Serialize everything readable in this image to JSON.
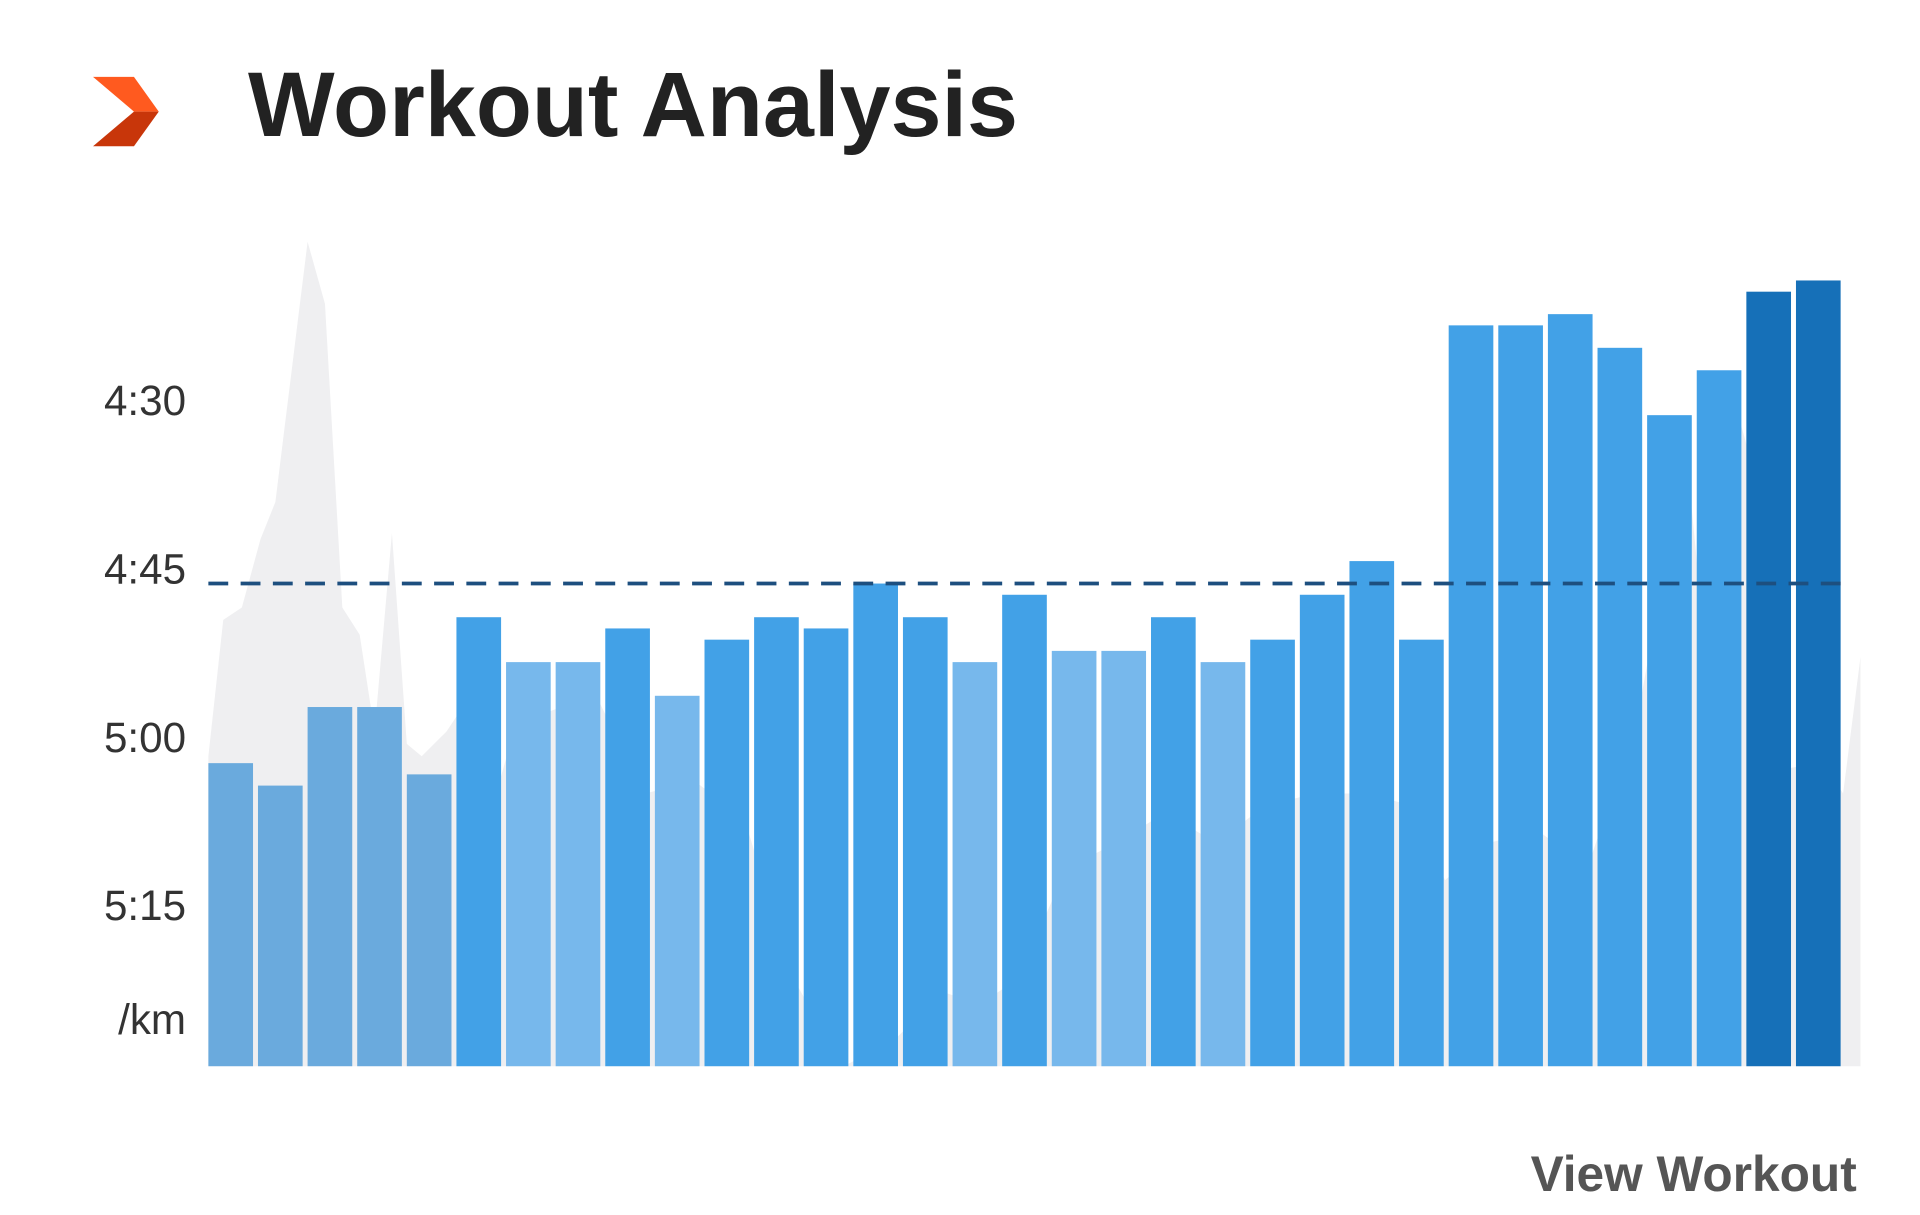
{
  "chart_data": {
    "type": "bar",
    "title": "Workout Analysis",
    "link": "View Workout",
    "y_unit": "/km",
    "categories": [
      null,
      null,
      null,
      null,
      null,
      null,
      null,
      null,
      null,
      null,
      null,
      null,
      null,
      null,
      null,
      null,
      null,
      null,
      null,
      null,
      null,
      null,
      null,
      null,
      null,
      null,
      null,
      null,
      null,
      null,
      null,
      null,
      null
    ],
    "values": [
      302,
      304,
      297,
      297,
      303,
      289,
      293,
      293,
      290,
      296,
      291,
      289,
      290,
      286,
      289,
      293,
      287,
      292,
      292,
      289,
      293,
      291,
      287,
      284,
      291,
      263,
      263,
      262,
      265,
      271,
      267,
      260,
      259
    ],
    "colors": [
      "#6aaadd",
      "#6aaadd",
      "#6aaadd",
      "#6aaadd",
      "#6aaadd",
      "#42a1e7",
      "#77b8ec",
      "#77b8ec",
      "#42a1e7",
      "#77b8ec",
      "#42a1e7",
      "#42a1e7",
      "#42a1e7",
      "#42a1e7",
      "#42a1e7",
      "#77b8ec",
      "#42a1e7",
      "#77b8ec",
      "#77b8ec",
      "#42a1e7",
      "#77b8ec",
      "#42a1e7",
      "#42a1e7",
      "#42a1e7",
      "#42a1e7",
      "#42a1e7",
      "#42a1e7",
      "#42a1e7",
      "#42a1e7",
      "#42a1e7",
      "#42a1e7",
      "#1670b8",
      "#1670b8"
    ],
    "average": 286,
    "average_color": "#1d4f7f",
    "ylim": [
      329,
      255
    ],
    "yticks": [
      {
        "value": 270,
        "label": "4:30"
      },
      {
        "value": 285,
        "label": "4:45"
      },
      {
        "value": 300,
        "label": "5:00"
      },
      {
        "value": 315,
        "label": "5:15"
      }
    ]
  }
}
